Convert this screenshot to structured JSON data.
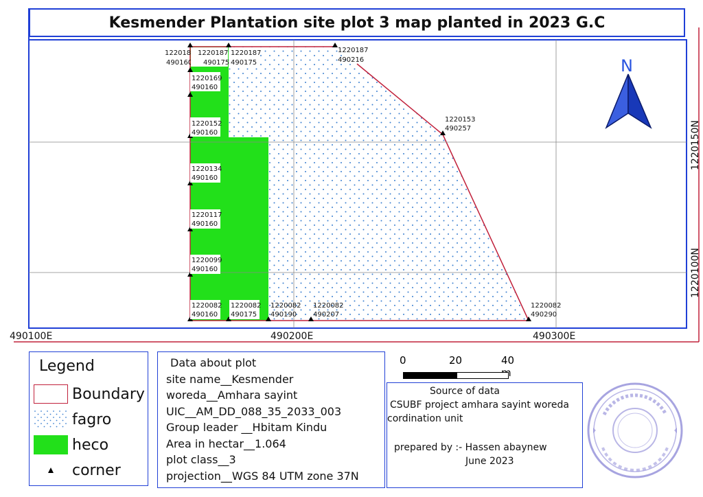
{
  "title": "Kesmender Plantation site plot 3 map planted in 2023 G.C",
  "map": {
    "colors": {
      "boundary": "#c0203a",
      "fagro_dots": "#3a7fd0",
      "heco": "#22e01a",
      "frame": "#1f3fd6",
      "grid": "#888888"
    },
    "x_tick_labels": [
      "490100E",
      "490200E",
      "490300E"
    ],
    "y_tick_labels": [
      "1220150N",
      "1220100N"
    ],
    "north_label": "N",
    "corner_labels": [
      {
        "n": "1220187",
        "e": "490160"
      },
      {
        "n": "1220187",
        "e": "490175"
      },
      {
        "n": "1220187",
        "e": "490175"
      },
      {
        "n": "1220187",
        "e": "490216"
      },
      {
        "n": "1220169",
        "e": "490160"
      },
      {
        "n": "1220152",
        "e": "490160"
      },
      {
        "n": "1220153",
        "e": "490257"
      },
      {
        "n": "1220134",
        "e": "490160"
      },
      {
        "n": "1220117",
        "e": "490160"
      },
      {
        "n": "1220099",
        "e": "490160"
      },
      {
        "n": "1220082",
        "e": "490160"
      },
      {
        "n": "1220082",
        "e": "490175"
      },
      {
        "n": "1220082",
        "e": "490190"
      },
      {
        "n": "1220082",
        "e": "490207"
      },
      {
        "n": "1220082",
        "e": "490290"
      }
    ]
  },
  "legend": {
    "title": "Legend",
    "items": [
      {
        "label": "Boundary",
        "icon": "boundary-swatch"
      },
      {
        "label": "fagro",
        "icon": "dot-pattern-swatch"
      },
      {
        "label": "heco",
        "icon": "green-fill-swatch"
      },
      {
        "label": "corner",
        "icon": "triangle-marker"
      }
    ]
  },
  "plot_info": {
    "heading": "Data about plot",
    "site_name": "site name__Kesmender",
    "woreda": "woreda__Amhara sayint",
    "uic": "UIC__AM_DD_088_35_2033_003",
    "group_leader": "Group leader __Hbitam Kindu",
    "area": "Area in hectar__1.064",
    "plot_class": "plot class__3",
    "projection": "projection__WGS 84 UTM zone 37N"
  },
  "scale_bar": {
    "labels": [
      "0",
      "20",
      "40 m"
    ]
  },
  "source": {
    "heading": "Source of data",
    "line1": "CSUBF project amhara sayint woreda",
    "line2": "cordination unit",
    "prepared_by": "prepared by :- Hassen abaynew",
    "date": "June 2023"
  }
}
